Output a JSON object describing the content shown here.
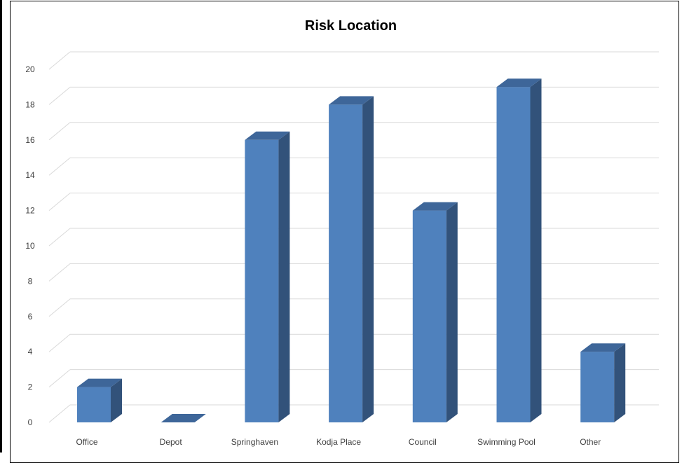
{
  "chart_data": {
    "type": "bar",
    "title": "Risk Location",
    "xlabel": "",
    "ylabel": "",
    "categories": [
      "Office",
      "Depot",
      "Springhaven",
      "Kodja Place",
      "Council",
      "Swimming Pool",
      "Other"
    ],
    "values": [
      2,
      0,
      16,
      18,
      12,
      19,
      4
    ],
    "ylim": [
      0,
      20
    ],
    "yticks": [
      0,
      2,
      4,
      6,
      8,
      10,
      12,
      14,
      16,
      18,
      20
    ],
    "grid": true,
    "legend": "none",
    "style": "3d-column"
  },
  "colors": {
    "bar_front": "#4F81BD",
    "bar_side": "#32527A",
    "bar_top": "#3E6699",
    "grid": "#D9D9D9",
    "text": "#404040"
  }
}
